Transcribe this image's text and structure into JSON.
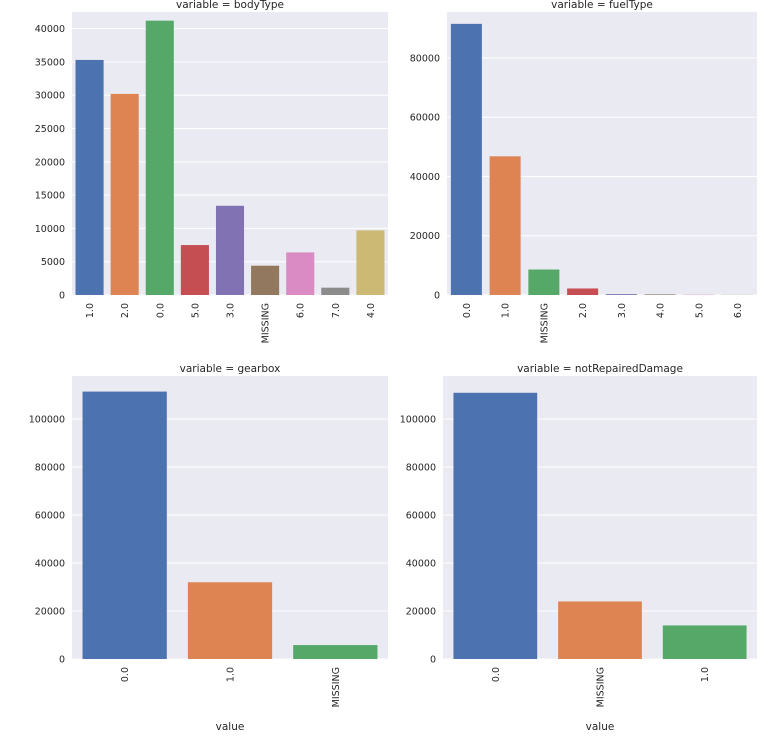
{
  "chart_data": [
    {
      "type": "bar",
      "title": "variable = bodyType",
      "categories": [
        "1.0",
        "2.0",
        "0.0",
        "5.0",
        "3.0",
        "MISSING",
        "6.0",
        "7.0",
        "4.0"
      ],
      "values": [
        35300,
        30200,
        41200,
        7500,
        13400,
        4400,
        6400,
        1100,
        9700
      ],
      "colors": [
        "#4c72b0",
        "#dd8452",
        "#55a868",
        "#c44e52",
        "#8172b3",
        "#937860",
        "#da8bc3",
        "#8c8c8c",
        "#ccb974"
      ],
      "yticks": [
        0,
        5000,
        10000,
        15000,
        20000,
        25000,
        30000,
        35000,
        40000
      ],
      "ylim": [
        0,
        42500
      ],
      "xlabel": "",
      "ylabel": ""
    },
    {
      "type": "bar",
      "title": "variable = fuelType",
      "categories": [
        "0.0",
        "1.0",
        "MISSING",
        "2.0",
        "3.0",
        "4.0",
        "5.0",
        "6.0"
      ],
      "values": [
        91500,
        46800,
        8600,
        2200,
        300,
        200,
        100,
        50
      ],
      "colors": [
        "#4c72b0",
        "#dd8452",
        "#55a868",
        "#c44e52",
        "#8172b3",
        "#937860",
        "#da8bc3",
        "#8c8c8c"
      ],
      "yticks": [
        0,
        20000,
        40000,
        60000,
        80000
      ],
      "ylim": [
        0,
        95500
      ],
      "xlabel": "",
      "ylabel": ""
    },
    {
      "type": "bar",
      "title": "variable = gearbox",
      "categories": [
        "0.0",
        "1.0",
        "MISSING"
      ],
      "values": [
        111500,
        32000,
        5800
      ],
      "colors": [
        "#4c72b0",
        "#dd8452",
        "#55a868"
      ],
      "yticks": [
        0,
        20000,
        40000,
        60000,
        80000,
        100000
      ],
      "ylim": [
        0,
        118000
      ],
      "xlabel": "value",
      "ylabel": ""
    },
    {
      "type": "bar",
      "title": "variable = notRepairedDamage",
      "categories": [
        "0.0",
        "MISSING",
        "1.0"
      ],
      "values": [
        111000,
        24000,
        14000
      ],
      "colors": [
        "#4c72b0",
        "#dd8452",
        "#55a868"
      ],
      "yticks": [
        0,
        20000,
        40000,
        60000,
        80000,
        100000
      ],
      "ylim": [
        0,
        118000
      ],
      "xlabel": "value",
      "ylabel": ""
    }
  ]
}
